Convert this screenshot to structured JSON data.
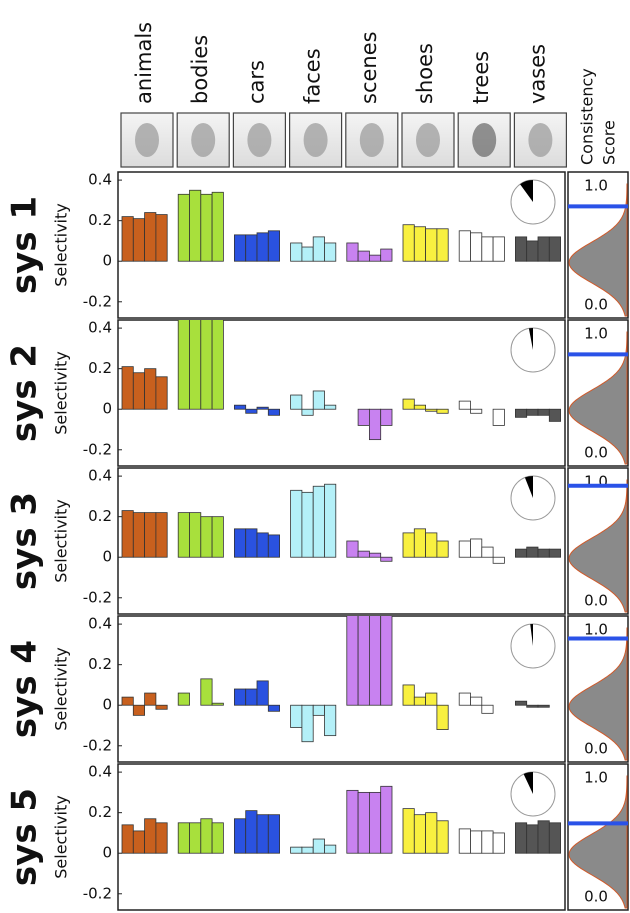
{
  "header": {
    "categories": [
      "animals",
      "bodies",
      "cars",
      "faces",
      "scenes",
      "shoes",
      "trees",
      "vases"
    ],
    "colors": [
      "#c8601e",
      "#a8e03c",
      "#2a52e0",
      "#b4f0f8",
      "#c882f0",
      "#f8f040",
      "#ffffff",
      "#555555"
    ],
    "score_title_lines": [
      "Consistency",
      "Score"
    ]
  },
  "chart_data": [
    {
      "type": "bar",
      "title": "sys 1",
      "ylabel": "Selectivity",
      "ylim": [
        -0.28,
        0.44
      ],
      "yticks": [
        0.4,
        0.2,
        0,
        -0.2
      ],
      "groups": [
        [
          0.22,
          0.21,
          0.24,
          0.23
        ],
        [
          0.33,
          0.35,
          0.33,
          0.34
        ],
        [
          0.13,
          0.13,
          0.14,
          0.15
        ],
        [
          0.09,
          0.07,
          0.12,
          0.09
        ],
        [
          0.09,
          0.05,
          0.03,
          0.06
        ],
        [
          0.18,
          0.17,
          0.16,
          0.16
        ],
        [
          0.15,
          0.14,
          0.12,
          0.12
        ],
        [
          0.12,
          0.1,
          0.12,
          0.12
        ]
      ],
      "pie": 0.1,
      "score": 0.83,
      "score_ylim": [
        -0.11,
        1.12
      ],
      "score_ticks": [
        {
          "value": 1,
          "label": "1.0"
        },
        {
          "value": 0,
          "label": "0.0"
        }
      ]
    },
    {
      "type": "bar",
      "title": "sys 2",
      "ylabel": "Selectivity",
      "ylim": [
        -0.28,
        0.44
      ],
      "yticks": [
        0.4,
        0.2,
        0,
        -0.2
      ],
      "groups": [
        [
          0.21,
          0.18,
          0.2,
          0.16
        ],
        [
          0.45,
          0.46,
          0.45,
          0.45
        ],
        [
          0.02,
          -0.02,
          0.01,
          -0.03
        ],
        [
          0.07,
          -0.03,
          0.09,
          0.02
        ],
        [
          0.0,
          -0.08,
          -0.15,
          -0.08
        ],
        [
          0.05,
          0.02,
          -0.01,
          -0.02
        ],
        [
          0.04,
          -0.02,
          0.0,
          -0.08
        ],
        [
          -0.04,
          -0.03,
          -0.03,
          -0.06
        ]
      ],
      "pie": 0.03,
      "score": 0.83,
      "score_ylim": [
        -0.11,
        1.12
      ],
      "score_ticks": [
        {
          "value": 1,
          "label": "1.0"
        },
        {
          "value": 0,
          "label": "0.0"
        }
      ]
    },
    {
      "type": "bar",
      "title": "sys 3",
      "ylabel": "Selectivity",
      "ylim": [
        -0.28,
        0.44
      ],
      "yticks": [
        0.4,
        0.2,
        0,
        -0.2
      ],
      "groups": [
        [
          0.23,
          0.22,
          0.22,
          0.22
        ],
        [
          0.22,
          0.22,
          0.2,
          0.2
        ],
        [
          0.14,
          0.14,
          0.12,
          0.11
        ],
        [
          0.33,
          0.32,
          0.35,
          0.36
        ],
        [
          0.08,
          0.03,
          0.02,
          -0.02
        ],
        [
          0.12,
          0.14,
          0.12,
          0.08
        ],
        [
          0.08,
          0.09,
          0.05,
          -0.03
        ],
        [
          0.04,
          0.05,
          0.04,
          0.04
        ]
      ],
      "pie": 0.06,
      "score": 0.97,
      "score_ylim": [
        -0.11,
        1.12
      ],
      "score_ticks": [
        {
          "value": 1,
          "label": "1.0"
        },
        {
          "value": 0,
          "label": "0.0"
        }
      ]
    },
    {
      "type": "bar",
      "title": "sys 4",
      "ylabel": "Selectivity",
      "ylim": [
        -0.28,
        0.44
      ],
      "yticks": [
        0.4,
        0.2,
        0,
        -0.2
      ],
      "groups": [
        [
          0.04,
          -0.05,
          0.06,
          -0.02
        ],
        [
          0.06,
          0.0,
          0.13,
          0.01
        ],
        [
          0.08,
          0.08,
          0.12,
          -0.03
        ],
        [
          -0.11,
          -0.18,
          -0.05,
          -0.15
        ],
        [
          0.55,
          0.46,
          0.48,
          0.47
        ],
        [
          0.1,
          0.04,
          0.06,
          -0.12
        ],
        [
          0.06,
          0.04,
          -0.04,
          0.0
        ],
        [
          0.02,
          -0.01,
          -0.01,
          0.0
        ]
      ],
      "pie": 0.02,
      "score": 0.93,
      "score_ylim": [
        -0.11,
        1.12
      ],
      "score_ticks": [
        {
          "value": 1,
          "label": "1.0"
        },
        {
          "value": 0,
          "label": "0.0"
        }
      ]
    },
    {
      "type": "bar",
      "title": "sys 5",
      "ylabel": "Selectivity",
      "ylim": [
        -0.28,
        0.44
      ],
      "yticks": [
        0.4,
        0.2,
        0,
        -0.2
      ],
      "groups": [
        [
          0.14,
          0.11,
          0.17,
          0.15
        ],
        [
          0.15,
          0.15,
          0.17,
          0.15
        ],
        [
          0.17,
          0.21,
          0.19,
          0.19
        ],
        [
          0.03,
          0.03,
          0.07,
          0.04
        ],
        [
          0.31,
          0.3,
          0.3,
          0.33
        ],
        [
          0.22,
          0.19,
          0.2,
          0.16
        ],
        [
          0.12,
          0.11,
          0.11,
          0.1
        ],
        [
          0.15,
          0.14,
          0.16,
          0.15
        ]
      ],
      "pie": 0.07,
      "score": 0.62,
      "score_ylim": [
        -0.11,
        1.12
      ],
      "score_ticks": [
        {
          "value": 1,
          "label": "1.0"
        },
        {
          "value": 0,
          "label": "0.0"
        }
      ]
    }
  ]
}
